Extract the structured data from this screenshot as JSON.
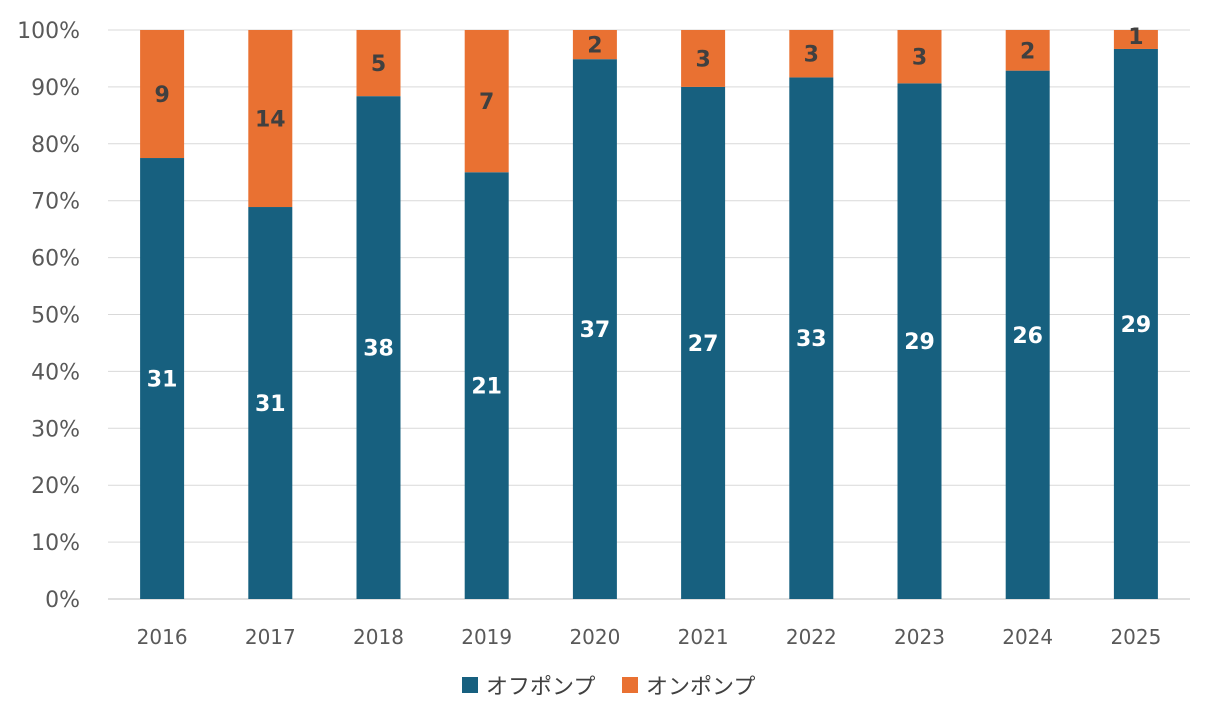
{
  "chart_data": {
    "type": "bar",
    "stacked": "percent",
    "title": "",
    "xlabel": "",
    "ylabel": "",
    "ylim": [
      0,
      100
    ],
    "yticks": [
      "0%",
      "10%",
      "20%",
      "30%",
      "40%",
      "50%",
      "60%",
      "70%",
      "80%",
      "90%",
      "100%"
    ],
    "categories": [
      "2016",
      "2017",
      "2018",
      "2019",
      "2020",
      "2021",
      "2022",
      "2023",
      "2024",
      "2025"
    ],
    "series": [
      {
        "name": "オフポンプ",
        "color": "#17607F",
        "values": [
          31,
          31,
          38,
          21,
          37,
          27,
          33,
          29,
          26,
          29
        ]
      },
      {
        "name": "オンポンプ",
        "color": "#E97132",
        "values": [
          9,
          14,
          5,
          7,
          2,
          3,
          3,
          3,
          2,
          1
        ]
      }
    ],
    "grid": true,
    "legend": "bottom"
  }
}
